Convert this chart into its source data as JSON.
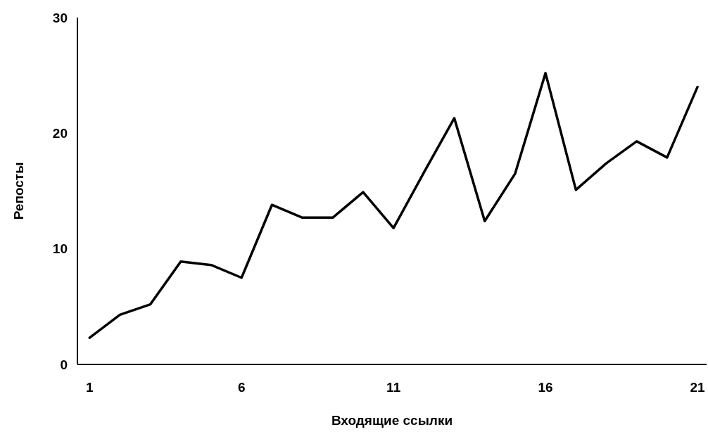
{
  "chart_data": {
    "type": "line",
    "xlabel": "Входящие ссылки",
    "ylabel": "Репосты",
    "x": [
      1,
      2,
      3,
      4,
      5,
      6,
      7,
      8,
      9,
      10,
      11,
      12,
      13,
      14,
      15,
      16,
      17,
      18,
      19,
      20,
      21
    ],
    "series": [
      {
        "color": "#000000",
        "values": [
          2.3,
          4.3,
          5.2,
          8.9,
          8.6,
          7.5,
          13.8,
          12.7,
          12.7,
          14.9,
          11.8,
          16.6,
          21.3,
          12.4,
          16.5,
          25.2,
          15.1,
          17.4,
          19.3,
          17.9,
          24.0
        ]
      }
    ],
    "xlim": [
      0.6,
      21.3
    ],
    "ylim": [
      0,
      30
    ],
    "xticks": [
      1,
      6,
      11,
      16,
      21
    ],
    "yticks": [
      0,
      10,
      20,
      30
    ],
    "marker": "none",
    "line_style": "solid"
  }
}
